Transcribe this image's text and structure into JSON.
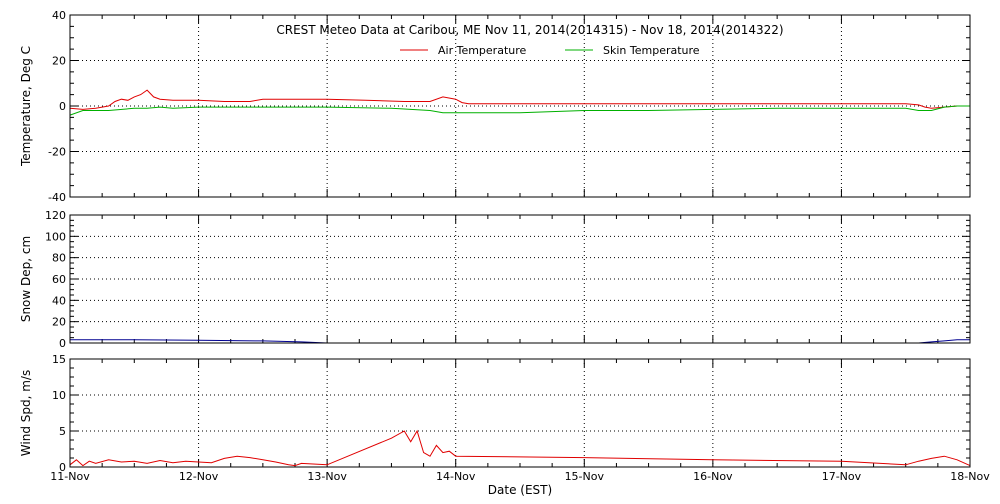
{
  "title": "CREST Meteo Data at Caribou, ME   Nov 11, 2014(2014315) - Nov 18, 2014(2014322)",
  "xlabel": "Date (EST)",
  "x_ticks": [
    "11-Nov",
    "12-Nov",
    "13-Nov",
    "14-Nov",
    "15-Nov",
    "16-Nov",
    "17-Nov",
    "18-Nov"
  ],
  "colors": {
    "air": "#e00000",
    "skin": "#00b000",
    "snow": "#000090",
    "wind": "#e00000"
  },
  "chart_data": [
    {
      "type": "line",
      "ylabel": "Temperature, Deg C",
      "ylim": [
        -40,
        40
      ],
      "y_ticks": [
        -40,
        -20,
        0,
        20,
        40
      ],
      "xlim": [
        0,
        7
      ],
      "x_unit": "days since 11-Nov",
      "grid": true,
      "legend": "top-center",
      "series": [
        {
          "name": "Air Temperature",
          "color": "air",
          "x": [
            0,
            0.1,
            0.2,
            0.3,
            0.35,
            0.4,
            0.45,
            0.5,
            0.55,
            0.6,
            0.65,
            0.7,
            0.8,
            1.0,
            1.2,
            1.4,
            1.5,
            1.6,
            1.8,
            2.0,
            2.3,
            2.6,
            2.8,
            2.9,
            3.0,
            3.05,
            3.1,
            3.5,
            4.0,
            4.5,
            5.0,
            5.5,
            6.0,
            6.5,
            6.6,
            6.65,
            6.7,
            6.8,
            6.9,
            7.0
          ],
          "y": [
            -1,
            -1.5,
            -1,
            0,
            2,
            3,
            2.5,
            4,
            5,
            7,
            4,
            3,
            2.5,
            2.5,
            2,
            2,
            3,
            3,
            3,
            3,
            2.5,
            2,
            2,
            4,
            3,
            1.5,
            1,
            1,
            1,
            1,
            1,
            1,
            1,
            1,
            0.5,
            -0.5,
            -1,
            -0.5,
            0,
            0
          ]
        },
        {
          "name": "Skin Temperature",
          "color": "skin",
          "x": [
            0,
            0.1,
            0.3,
            0.5,
            0.6,
            0.7,
            0.8,
            1.0,
            1.5,
            2.0,
            2.5,
            2.8,
            2.9,
            3.0,
            3.5,
            4.0,
            4.5,
            5.0,
            5.5,
            6.0,
            6.5,
            6.6,
            6.7,
            6.8,
            6.9,
            7.0
          ],
          "y": [
            -4,
            -2,
            -2,
            -1,
            -1,
            -0.5,
            -1,
            -0.5,
            -0.5,
            -0.5,
            -1,
            -2,
            -3,
            -3,
            -3,
            -2,
            -2,
            -1.5,
            -1,
            -1,
            -1,
            -2,
            -2,
            -0.5,
            0,
            0
          ]
        }
      ]
    },
    {
      "type": "line",
      "ylabel": "Snow Dep, cm",
      "ylim": [
        0,
        120
      ],
      "y_ticks": [
        0,
        20,
        40,
        60,
        80,
        100,
        120
      ],
      "xlim": [
        0,
        7
      ],
      "x_unit": "days since 11-Nov",
      "grid": true,
      "series": [
        {
          "name": "Snow Depth",
          "color": "snow",
          "x": [
            0,
            0.5,
            1.0,
            1.5,
            1.8,
            2.0,
            2.5,
            2.8,
            3.0,
            6.6,
            6.7,
            6.8,
            6.9,
            7.0
          ],
          "y": [
            3,
            3,
            2.5,
            2,
            1,
            0,
            0,
            0,
            0,
            0,
            1,
            2,
            3,
            3
          ]
        }
      ]
    },
    {
      "type": "line",
      "ylabel": "Wind Spd, m/s",
      "ylim": [
        0,
        15
      ],
      "y_ticks": [
        0,
        5,
        10,
        15
      ],
      "xlim": [
        0,
        7
      ],
      "x_unit": "days since 11-Nov",
      "grid": true,
      "series": [
        {
          "name": "Wind Speed",
          "color": "wind",
          "x": [
            0,
            0.05,
            0.1,
            0.15,
            0.2,
            0.3,
            0.4,
            0.5,
            0.6,
            0.7,
            0.8,
            0.9,
            1.0,
            1.1,
            1.2,
            1.3,
            1.4,
            1.5,
            1.6,
            1.7,
            1.75,
            1.8,
            2.0,
            2.5,
            2.6,
            2.65,
            2.7,
            2.75,
            2.8,
            2.85,
            2.9,
            2.95,
            3.0,
            4.0,
            5.0,
            6.0,
            6.5,
            6.6,
            6.7,
            6.8,
            6.9,
            7.0
          ],
          "y": [
            0.3,
            1,
            0.2,
            0.8,
            0.5,
            1,
            0.7,
            0.8,
            0.5,
            0.9,
            0.6,
            0.8,
            0.7,
            0.6,
            1.2,
            1.5,
            1.3,
            1,
            0.7,
            0.3,
            0.2,
            0.5,
            0.3,
            4,
            5,
            3.5,
            5,
            2,
            1.5,
            3,
            2,
            2.2,
            1.5,
            1.3,
            1,
            0.8,
            0.3,
            0.8,
            1.2,
            1.5,
            1,
            0.2
          ]
        }
      ]
    }
  ]
}
